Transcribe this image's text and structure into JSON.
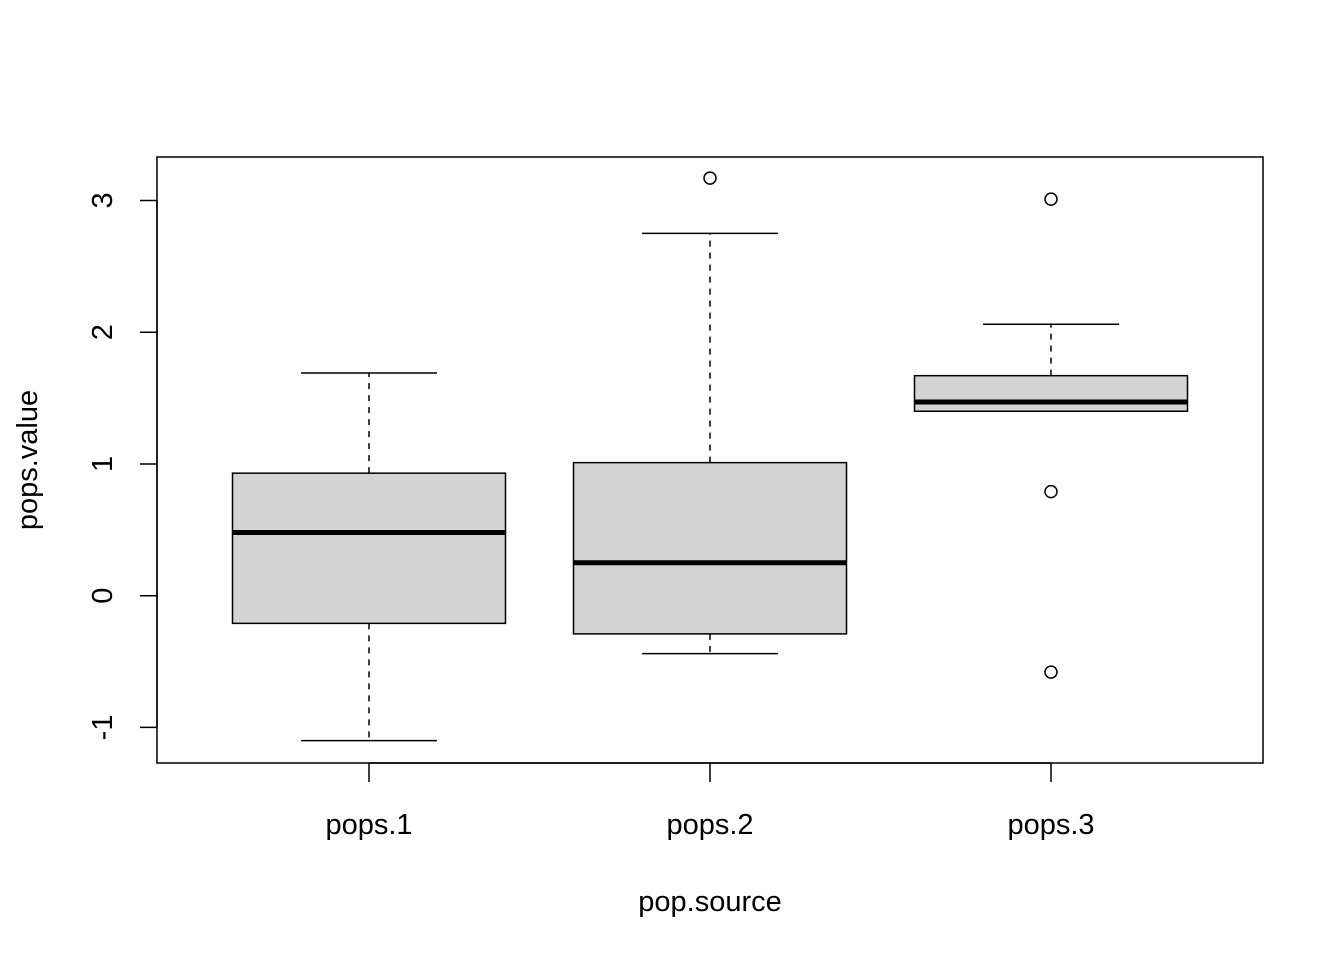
{
  "chart_data": {
    "type": "boxplot",
    "title": "",
    "xlabel": "pop.source",
    "ylabel": "pops.value",
    "ylim": [
      -1.27,
      3.33
    ],
    "yticks": [
      -1,
      0,
      1,
      2,
      3
    ],
    "ytick_labels": [
      "-1",
      "0",
      "1",
      "2",
      "3"
    ],
    "categories": [
      "pops.1",
      "pops.2",
      "pops.3"
    ],
    "box_fill": "#d3d3d3",
    "grid": false,
    "boxes": [
      {
        "whisker_low": -1.1,
        "q1": -0.21,
        "median": 0.48,
        "q3": 0.93,
        "whisker_high": 1.69,
        "outliers": []
      },
      {
        "whisker_low": -0.44,
        "q1": -0.29,
        "median": 0.25,
        "q3": 1.01,
        "whisker_high": 2.75,
        "outliers": [
          3.17
        ]
      },
      {
        "whisker_low": 1.4,
        "q1": 1.4,
        "median": 1.47,
        "q3": 1.67,
        "whisker_high": 2.06,
        "outliers": [
          3.01,
          0.79,
          -0.58
        ]
      }
    ]
  }
}
